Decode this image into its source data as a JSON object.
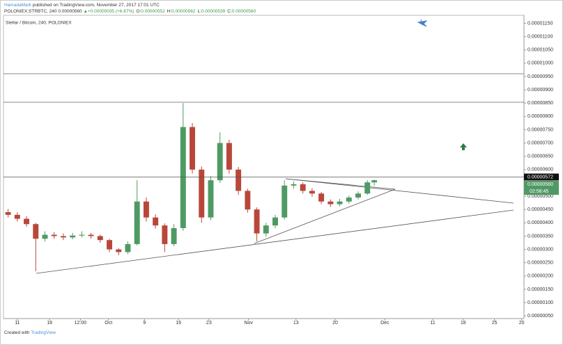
{
  "header": {
    "author": "HamadaMark",
    "published": "published on TradingView.com, November 27, 2017 17:01 UTC",
    "symbol": "POLONIEX:STRBTC, 240",
    "price": "0.00000560",
    "change": "▲+0.00000035 (+6.67%)",
    "quote": [
      {
        "label": "O:",
        "value": "0.00000552"
      },
      {
        "label": "H:",
        "value": "0.00000562"
      },
      {
        "label": "L:",
        "value": "0.00000539"
      },
      {
        "label": "C:",
        "value": "0.00000560"
      }
    ]
  },
  "chart_data": {
    "type": "candlestick",
    "legend": "Stellar / Bitcoin, 240, POLONIEX",
    "up_color": "#4f9a64",
    "down_color": "#b8473a",
    "xlim": [
      -3,
      110
    ],
    "ylim": [
      4e-07,
      1.18e-05
    ],
    "xticks": [
      {
        "value": 0,
        "label": "11"
      },
      {
        "value": 7,
        "label": "18"
      },
      {
        "value": 13.7,
        "label": "12:00"
      },
      {
        "value": 19.8,
        "label": "Oct"
      },
      {
        "value": 27.6,
        "label": "9"
      },
      {
        "value": 35,
        "label": "16"
      },
      {
        "value": 41.6,
        "label": "23"
      },
      {
        "value": 50.2,
        "label": "Nov"
      },
      {
        "value": 60.5,
        "label": "13"
      },
      {
        "value": 69,
        "label": "20"
      },
      {
        "value": 79.8,
        "label": "Dec"
      },
      {
        "value": 90.2,
        "label": "11"
      },
      {
        "value": 96.8,
        "label": "18"
      },
      {
        "value": 103.6,
        "label": "25"
      },
      {
        "value": 109.5,
        "label": "20"
      }
    ],
    "yticks": [
      {
        "value": 5e-07,
        "label": "0.00000050"
      },
      {
        "value": 1e-06,
        "label": "0.00000100"
      },
      {
        "value": 1.5e-06,
        "label": "0.00000150"
      },
      {
        "value": 2e-06,
        "label": "0.00000200"
      },
      {
        "value": 2.5e-06,
        "label": "0.00000250"
      },
      {
        "value": 3e-06,
        "label": "0.00000300"
      },
      {
        "value": 3.5e-06,
        "label": "0.00000350"
      },
      {
        "value": 4e-06,
        "label": "0.00000400"
      },
      {
        "value": 4.5e-06,
        "label": "0.00000450"
      },
      {
        "value": 5e-06,
        "label": "0.00000500"
      },
      {
        "value": 5.5e-06,
        "label": "0.00000550"
      },
      {
        "value": 6e-06,
        "label": "0.00000600"
      },
      {
        "value": 6.5e-06,
        "label": "0.00000650"
      },
      {
        "value": 7e-06,
        "label": "0.00000700"
      },
      {
        "value": 7.5e-06,
        "label": "0.00000750"
      },
      {
        "value": 8e-06,
        "label": "0.00000800"
      },
      {
        "value": 8.5e-06,
        "label": "0.00000850"
      },
      {
        "value": 9e-06,
        "label": "0.00000900"
      },
      {
        "value": 9.5e-06,
        "label": "0.00000950"
      },
      {
        "value": 1e-05,
        "label": "0.00001000"
      },
      {
        "value": 1.05e-05,
        "label": "0.00001050"
      },
      {
        "value": 1.1e-05,
        "label": "0.00001100"
      },
      {
        "value": 1.15e-05,
        "label": "0.00001150"
      }
    ],
    "line_marker": {
      "value": 5.72e-06,
      "label": "0.00000572"
    },
    "last_price": {
      "value": 5.6e-06,
      "label": "0.00000560",
      "countdown": "02:58:45"
    },
    "candles": {
      "x": [
        -2,
        0,
        2,
        4,
        6,
        8,
        10,
        12,
        14,
        16,
        18,
        20,
        22,
        24,
        26,
        28,
        30,
        32,
        34,
        36,
        38,
        40,
        42,
        44,
        46,
        48,
        50,
        52,
        54,
        56,
        58,
        60,
        62,
        64,
        66,
        68,
        70,
        72,
        74,
        76,
        77.5
      ],
      "open": [
        4.4e-06,
        4.3e-06,
        4.15e-06,
        3.95e-06,
        3.4e-06,
        3.55e-06,
        3.5e-06,
        3.45e-06,
        3.52e-06,
        3.55e-06,
        3.5e-06,
        3.35e-06,
        3e-06,
        2.9e-06,
        3.2e-06,
        4.8e-06,
        4.2e-06,
        3.9e-06,
        3.2e-06,
        3.8e-06,
        7.6e-06,
        6e-06,
        4.2e-06,
        5.6e-06,
        7e-06,
        6e-06,
        5.2e-06,
        4.5e-06,
        3.6e-06,
        3.9e-06,
        4.2e-06,
        5.4e-06,
        5.45e-06,
        5.2e-06,
        5.1e-06,
        4.8e-06,
        4.7e-06,
        4.8e-06,
        4.95e-06,
        5.1e-06,
        5.52e-06
      ],
      "high": [
        4.52e-06,
        4.4e-06,
        4.25e-06,
        4e-06,
        3.68e-06,
        3.65e-06,
        3.6e-06,
        3.62e-06,
        3.68e-06,
        3.62e-06,
        3.56e-06,
        3.4e-06,
        3.05e-06,
        3.3e-06,
        5.6e-06,
        4.95e-06,
        4.32e-06,
        3.98e-06,
        3.95e-06,
        8.5e-06,
        7.75e-06,
        6.12e-06,
        5.75e-06,
        7.4e-06,
        7.12e-06,
        6.1e-06,
        5.28e-06,
        4.58e-06,
        4e-06,
        4.3e-06,
        5.6e-06,
        5.56e-06,
        5.52e-06,
        5.3e-06,
        5.16e-06,
        4.88e-06,
        4.9e-06,
        5.02e-06,
        5.18e-06,
        5.6e-06,
        5.62e-06
      ],
      "low": [
        4.2e-06,
        4.05e-06,
        3.85e-06,
        2.18e-06,
        3.3e-06,
        3.4e-06,
        3.35e-06,
        3.38e-06,
        3.45e-06,
        3.4e-06,
        3.25e-06,
        2.9e-06,
        2.78e-06,
        2.82e-06,
        3.15e-06,
        4.05e-06,
        3.78e-06,
        2.9e-06,
        3.12e-06,
        3.7e-06,
        5.85e-06,
        4e-06,
        4.1e-06,
        5.5e-06,
        5.85e-06,
        5.05e-06,
        4.38e-06,
        3.3e-06,
        3.48e-06,
        3.8e-06,
        4.12e-06,
        5.28e-06,
        5.1e-06,
        4.98e-06,
        4.7e-06,
        4.6e-06,
        4.62e-06,
        4.72e-06,
        4.88e-06,
        5.05e-06,
        5.39e-06
      ],
      "close": [
        4.3e-06,
        4.15e-06,
        3.95e-06,
        3.4e-06,
        3.55e-06,
        3.5e-06,
        3.45e-06,
        3.52e-06,
        3.55e-06,
        3.5e-06,
        3.35e-06,
        3e-06,
        2.9e-06,
        3.2e-06,
        4.8e-06,
        4.2e-06,
        3.9e-06,
        3.2e-06,
        3.8e-06,
        7.6e-06,
        6e-06,
        4.2e-06,
        5.6e-06,
        7e-06,
        6e-06,
        5.2e-06,
        4.5e-06,
        3.6e-06,
        3.9e-06,
        4.2e-06,
        5.4e-06,
        5.45e-06,
        5.2e-06,
        5.1e-06,
        4.8e-06,
        4.7e-06,
        4.8e-06,
        4.95e-06,
        5.1e-06,
        5.52e-06,
        5.6e-06
      ]
    }
  },
  "footer": {
    "created": "Created with",
    "brand": "TradingView"
  }
}
